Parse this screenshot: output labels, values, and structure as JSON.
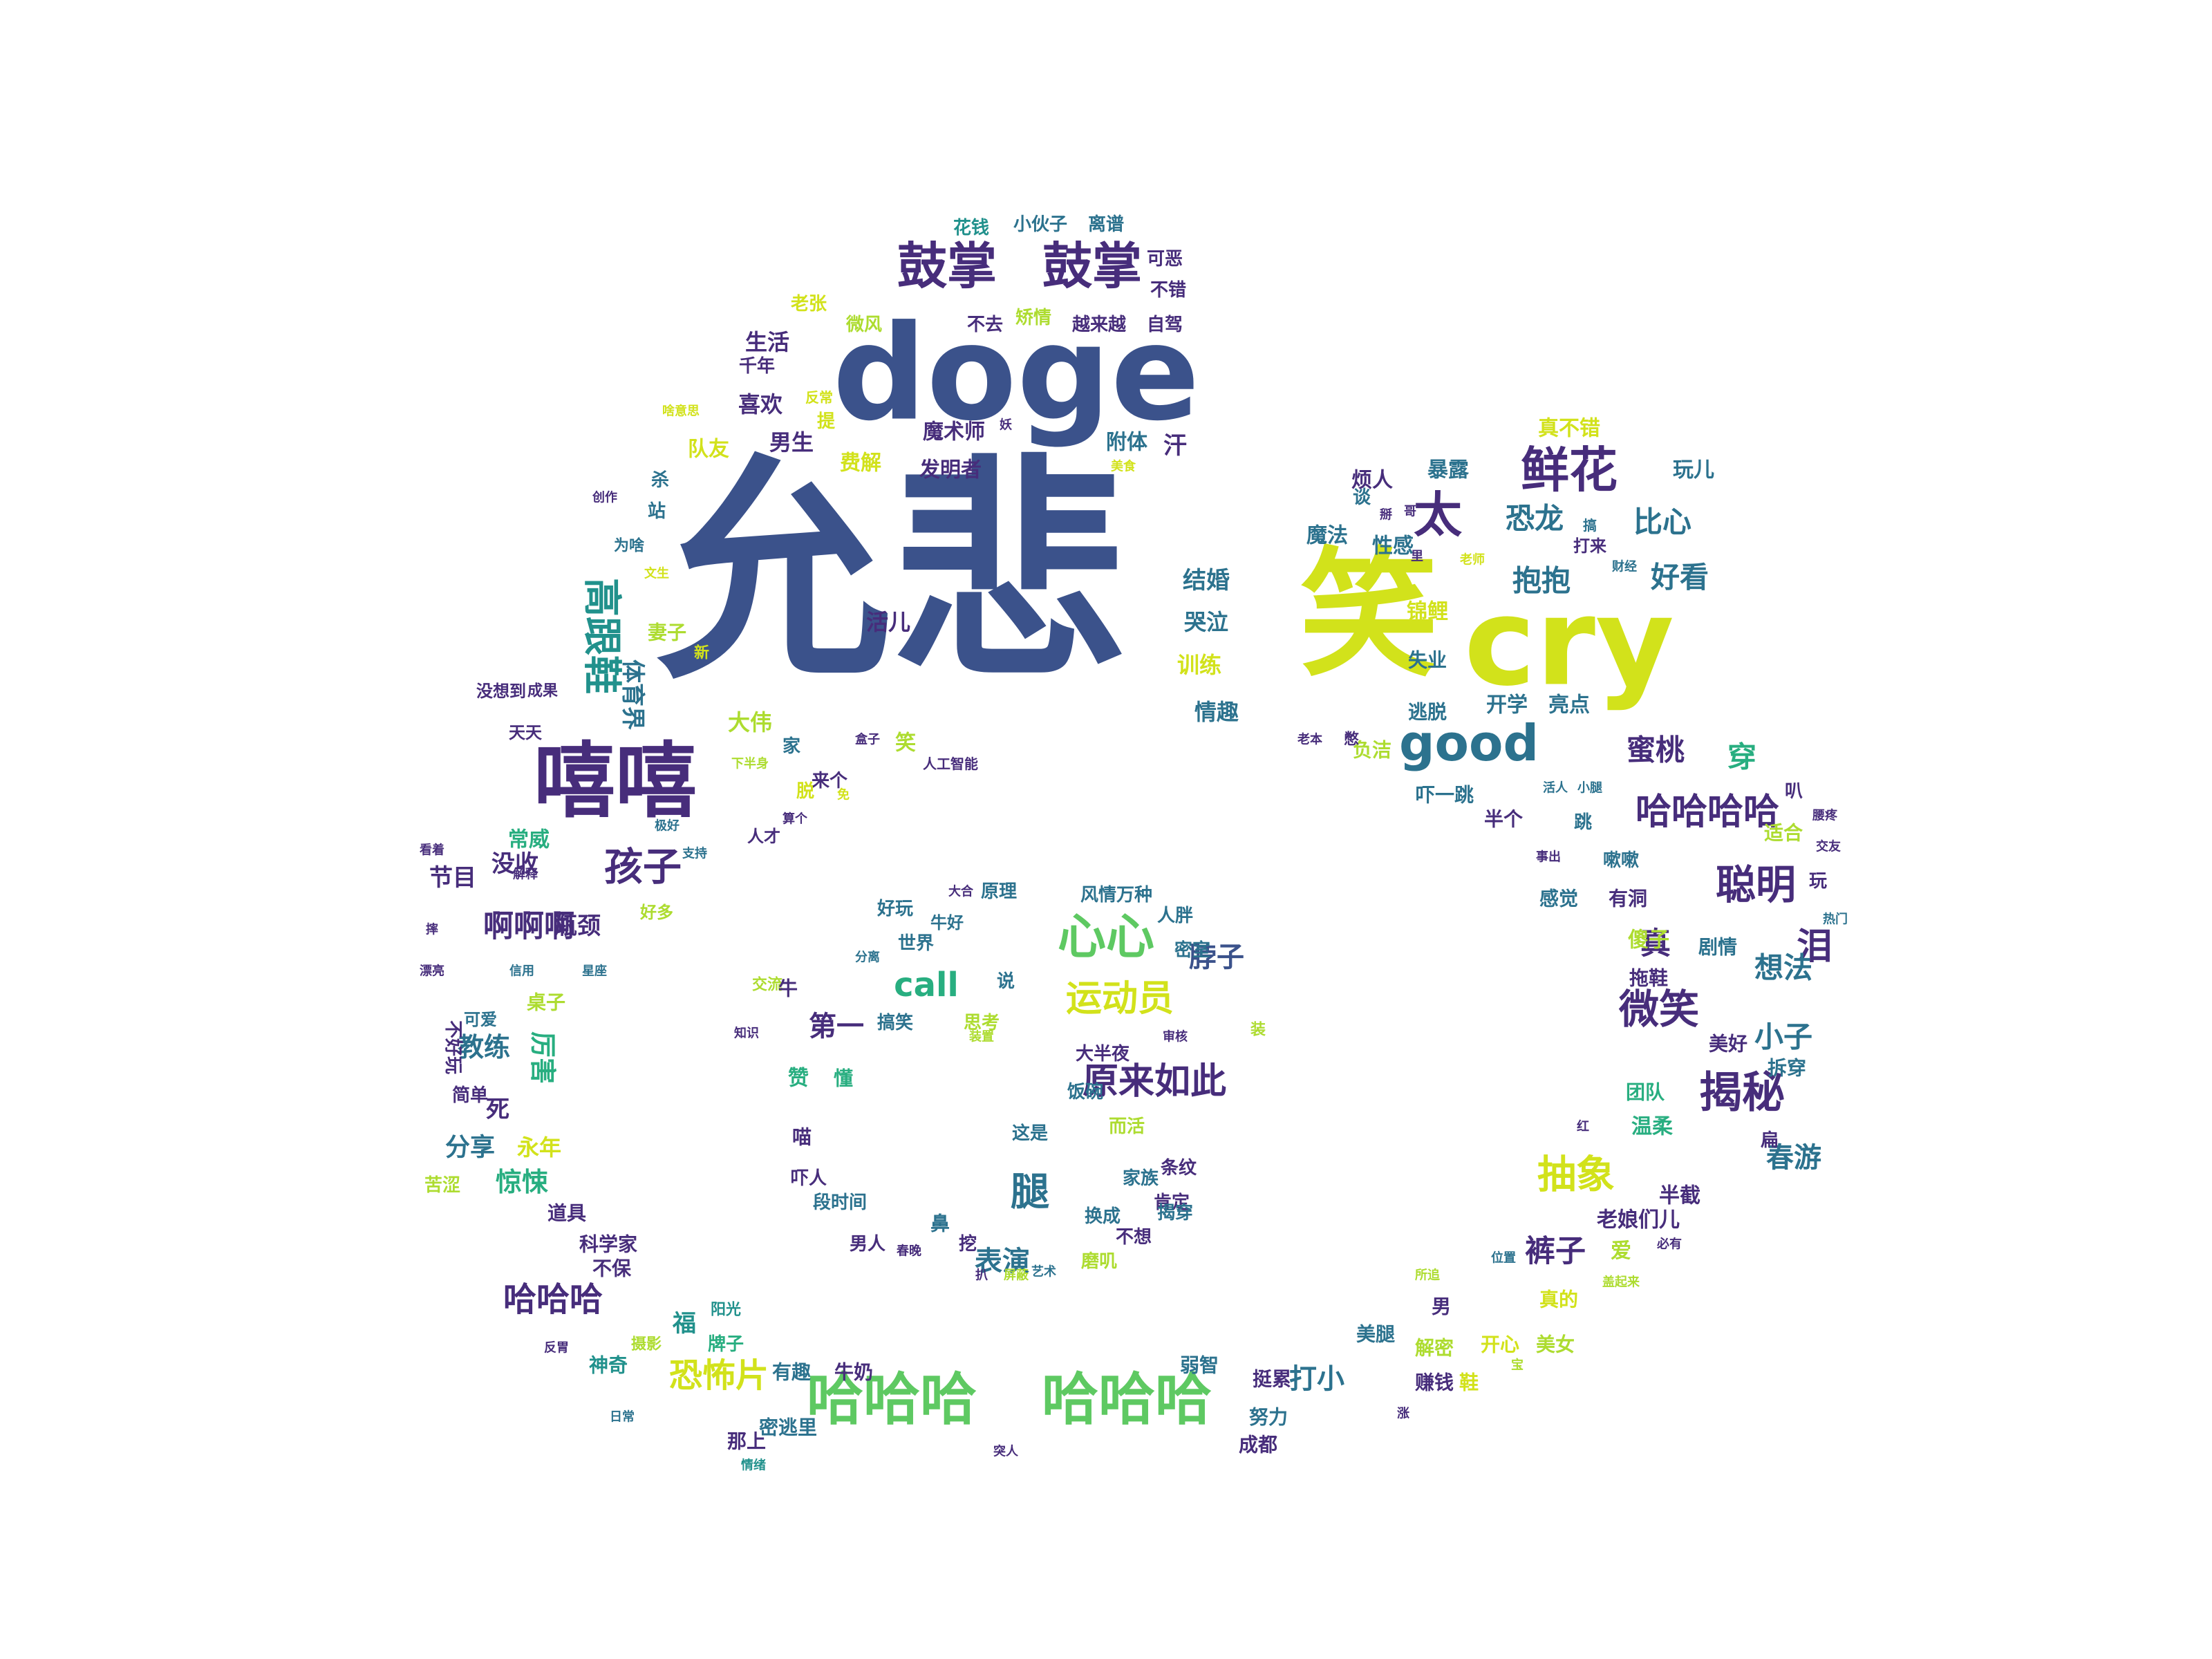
{
  "palette": {
    "p1": "#3b528b",
    "p2": "#472d7b",
    "p3": "#2c728e",
    "p4": "#21918c",
    "p5": "#28ae80",
    "p6": "#5ec962",
    "p7": "#addc30",
    "p8": "#d2e21b"
  },
  "words": [
    {
      "text": "允悲",
      "color": "p1"
    },
    {
      "text": "doge",
      "color": "p1"
    },
    {
      "text": "笑",
      "color": "p8"
    },
    {
      "text": "cry",
      "color": "p8"
    },
    {
      "text": "嘻嘻",
      "color": "p2"
    },
    {
      "text": "哈哈哈",
      "color": "p6"
    },
    {
      "text": "哈哈哈",
      "color": "p6"
    },
    {
      "text": "鼓掌",
      "color": "p2"
    },
    {
      "text": "鼓掌",
      "color": "p2"
    },
    {
      "text": "good",
      "color": "p3"
    },
    {
      "text": "心心",
      "color": "p6"
    },
    {
      "text": "鲜花",
      "color": "p2"
    },
    {
      "text": "太",
      "color": "p2"
    },
    {
      "text": "哈哈哈哈",
      "color": "p2"
    },
    {
      "text": "揭秘",
      "color": "p2"
    },
    {
      "text": "微笑",
      "color": "p2"
    },
    {
      "text": "聪明",
      "color": "p2"
    },
    {
      "text": "高跟鞋",
      "color": "p4"
    },
    {
      "text": "孩子",
      "color": "p2"
    },
    {
      "text": "抽象",
      "color": "p8"
    },
    {
      "text": "运动员",
      "color": "p8"
    },
    {
      "text": "原来如此",
      "color": "p2"
    },
    {
      "text": "call",
      "color": "p5"
    },
    {
      "text": "哈哈哈",
      "color": "p2"
    },
    {
      "text": "恐怖片",
      "color": "p8"
    },
    {
      "text": "泪",
      "color": "p2"
    },
    {
      "text": "啊啊啊",
      "color": "p2"
    },
    {
      "text": "裤子",
      "color": "p2"
    },
    {
      "text": "腿",
      "color": "p3"
    },
    {
      "text": "恐龙",
      "color": "p3"
    },
    {
      "text": "比心",
      "color": "p3"
    },
    {
      "text": "抱抱",
      "color": "p3"
    },
    {
      "text": "好看",
      "color": "p3"
    },
    {
      "text": "蜜桃",
      "color": "p2"
    },
    {
      "text": "穿",
      "color": "p5"
    },
    {
      "text": "真",
      "color": "p2"
    },
    {
      "text": "想法",
      "color": "p3"
    },
    {
      "text": "小子",
      "color": "p3"
    },
    {
      "text": "春游",
      "color": "p3"
    },
    {
      "text": "表演",
      "color": "p3"
    },
    {
      "text": "打小",
      "color": "p3"
    },
    {
      "text": "第一",
      "color": "p2"
    },
    {
      "text": "脖子",
      "color": "p1"
    },
    {
      "text": "教练",
      "color": "p3"
    },
    {
      "text": "厉害",
      "color": "p5"
    },
    {
      "text": "惊悚",
      "color": "p5"
    },
    {
      "text": "分享",
      "color": "p3"
    },
    {
      "text": "永年",
      "color": "p8"
    },
    {
      "text": "节目",
      "color": "p2"
    },
    {
      "text": "没收",
      "color": "p2"
    },
    {
      "text": "常威",
      "color": "p5"
    },
    {
      "text": "体育界",
      "color": "p3"
    },
    {
      "text": "大伟",
      "color": "p7"
    },
    {
      "text": "活儿",
      "color": "p2"
    },
    {
      "text": "结婚",
      "color": "p3"
    },
    {
      "text": "哭泣",
      "color": "p3"
    },
    {
      "text": "训练",
      "color": "p8"
    },
    {
      "text": "情趣",
      "color": "p3"
    },
    {
      "text": "魔术师",
      "color": "p2"
    },
    {
      "text": "发明者",
      "color": "p2"
    },
    {
      "text": "附体",
      "color": "p3"
    },
    {
      "text": "汗",
      "color": "p2"
    },
    {
      "text": "喜欢",
      "color": "p2"
    },
    {
      "text": "生活",
      "color": "p2"
    },
    {
      "text": "男生",
      "color": "p2"
    },
    {
      "text": "队友",
      "color": "p8"
    },
    {
      "text": "费解",
      "color": "p8"
    },
    {
      "text": "花钱",
      "color": "p4"
    },
    {
      "text": "小伙子",
      "color": "p3"
    },
    {
      "text": "离谱",
      "color": "p3"
    },
    {
      "text": "可恶",
      "color": "p2"
    },
    {
      "text": "不错",
      "color": "p2"
    },
    {
      "text": "老张",
      "color": "p8"
    },
    {
      "text": "微风",
      "color": "p7"
    },
    {
      "text": "矫情",
      "color": "p7"
    },
    {
      "text": "不去",
      "color": "p2"
    },
    {
      "text": "越来越",
      "color": "p2"
    },
    {
      "text": "自驾",
      "color": "p2"
    },
    {
      "text": "千年",
      "color": "p2"
    },
    {
      "text": "真不错",
      "color": "p8"
    },
    {
      "text": "烦人",
      "color": "p2"
    },
    {
      "text": "暴露",
      "color": "p3"
    },
    {
      "text": "玩儿",
      "color": "p3"
    },
    {
      "text": "魔法",
      "color": "p3"
    },
    {
      "text": "性感",
      "color": "p3"
    },
    {
      "text": "锦鲤",
      "color": "p8"
    },
    {
      "text": "失业",
      "color": "p3"
    },
    {
      "text": "开学",
      "color": "p3"
    },
    {
      "text": "亮点",
      "color": "p3"
    },
    {
      "text": "逃脱",
      "color": "p3"
    },
    {
      "text": "负洁",
      "color": "p7"
    },
    {
      "text": "吓一跳",
      "color": "p3"
    },
    {
      "text": "半个",
      "color": "p2"
    },
    {
      "text": "适合",
      "color": "p7"
    },
    {
      "text": "感觉",
      "color": "p3"
    },
    {
      "text": "有洞",
      "color": "p2"
    },
    {
      "text": "傻子",
      "color": "p7"
    },
    {
      "text": "剧情",
      "color": "p3"
    },
    {
      "text": "拖鞋",
      "color": "p2"
    },
    {
      "text": "美好",
      "color": "p2"
    },
    {
      "text": "拆穿",
      "color": "p3"
    },
    {
      "text": "团队",
      "color": "p5"
    },
    {
      "text": "温柔",
      "color": "p5"
    },
    {
      "text": "半截",
      "color": "p2"
    },
    {
      "text": "老娘们儿",
      "color": "p2"
    },
    {
      "text": "真的",
      "color": "p8"
    },
    {
      "text": "开心",
      "color": "p8"
    },
    {
      "text": "美女",
      "color": "p7"
    },
    {
      "text": "鞋",
      "color": "p8"
    },
    {
      "text": "解密",
      "color": "p7"
    },
    {
      "text": "赚钱",
      "color": "p2"
    },
    {
      "text": "美腿",
      "color": "p3"
    },
    {
      "text": "男",
      "color": "p2"
    },
    {
      "text": "弱智",
      "color": "p3"
    },
    {
      "text": "挺累",
      "color": "p2"
    },
    {
      "text": "努力",
      "color": "p3"
    },
    {
      "text": "成都",
      "color": "p2"
    },
    {
      "text": "牛奶",
      "color": "p2"
    },
    {
      "text": "有趣",
      "color": "p3"
    },
    {
      "text": "密逃里",
      "color": "p3"
    },
    {
      "text": "那上",
      "color": "p2"
    },
    {
      "text": "神奇",
      "color": "p4"
    },
    {
      "text": "科学家",
      "color": "p2"
    },
    {
      "text": "道具",
      "color": "p2"
    },
    {
      "text": "不保",
      "color": "p2"
    },
    {
      "text": "苦涩",
      "color": "p7"
    },
    {
      "text": "简单",
      "color": "p2"
    },
    {
      "text": "不好玩",
      "color": "p2"
    },
    {
      "text": "可爱",
      "color": "p3"
    },
    {
      "text": "桌子",
      "color": "p7"
    },
    {
      "text": "瓶颈",
      "color": "p2"
    },
    {
      "text": "好多",
      "color": "p7"
    },
    {
      "text": "风情万种",
      "color": "p3"
    },
    {
      "text": "原理",
      "color": "p3"
    },
    {
      "text": "人胖",
      "color": "p3"
    },
    {
      "text": "世界",
      "color": "p3"
    },
    {
      "text": "好玩",
      "color": "p3"
    },
    {
      "text": "密室",
      "color": "p3"
    },
    {
      "text": "搞笑",
      "color": "p3"
    },
    {
      "text": "思考",
      "color": "p7"
    },
    {
      "text": "大半夜",
      "color": "p2"
    },
    {
      "text": "饭碗",
      "color": "p3"
    },
    {
      "text": "这是",
      "color": "p3"
    },
    {
      "text": "而活",
      "color": "p7"
    },
    {
      "text": "家族",
      "color": "p3"
    },
    {
      "text": "条纹",
      "color": "p2"
    },
    {
      "text": "肯定",
      "color": "p2"
    },
    {
      "text": "揭穿",
      "color": "p3"
    },
    {
      "text": "换成",
      "color": "p3"
    },
    {
      "text": "不想",
      "color": "p2"
    },
    {
      "text": "磨叽",
      "color": "p7"
    },
    {
      "text": "男人",
      "color": "p2"
    },
    {
      "text": "吓人",
      "color": "p2"
    },
    {
      "text": "段时间",
      "color": "p3"
    },
    {
      "text": "喵",
      "color": "p2"
    },
    {
      "text": "赞",
      "color": "p5"
    },
    {
      "text": "懂",
      "color": "p5"
    },
    {
      "text": "牛好",
      "color": "p3"
    },
    {
      "text": "笑",
      "color": "p7"
    },
    {
      "text": "来个",
      "color": "p2"
    },
    {
      "text": "家",
      "color": "p3"
    },
    {
      "text": "人才",
      "color": "p2"
    },
    {
      "text": "天天",
      "color": "p2"
    },
    {
      "text": "没想到",
      "color": "p2"
    },
    {
      "text": "成果",
      "color": "p2"
    },
    {
      "text": "妻子",
      "color": "p7"
    },
    {
      "text": "新",
      "color": "p8"
    },
    {
      "text": "文生",
      "color": "p8"
    },
    {
      "text": "为啥",
      "color": "p3"
    },
    {
      "text": "站",
      "color": "p3"
    },
    {
      "text": "杀",
      "color": "p3"
    },
    {
      "text": "创作",
      "color": "p2"
    },
    {
      "text": "啥意思",
      "color": "p8"
    },
    {
      "text": "反常",
      "color": "p8"
    },
    {
      "text": "提",
      "color": "p8"
    },
    {
      "text": "妖",
      "color": "p2"
    },
    {
      "text": "美食",
      "color": "p8"
    },
    {
      "text": "谈",
      "color": "p3"
    },
    {
      "text": "掰",
      "color": "p2"
    },
    {
      "text": "哥",
      "color": "p2"
    },
    {
      "text": "里",
      "color": "p2"
    },
    {
      "text": "老师",
      "color": "p8"
    },
    {
      "text": "打来",
      "color": "p2"
    },
    {
      "text": "财经",
      "color": "p3"
    },
    {
      "text": "搞",
      "color": "p3"
    },
    {
      "text": "老本",
      "color": "p2"
    },
    {
      "text": "憋",
      "color": "p2"
    },
    {
      "text": "人工智能",
      "color": "p2"
    },
    {
      "text": "盒子",
      "color": "p2"
    },
    {
      "text": "下半身",
      "color": "p7"
    },
    {
      "text": "脱",
      "color": "p8"
    },
    {
      "text": "免",
      "color": "p8"
    },
    {
      "text": "算个",
      "color": "p2"
    },
    {
      "text": "极好",
      "color": "p3"
    },
    {
      "text": "支持",
      "color": "p3"
    },
    {
      "text": "看着",
      "color": "p2"
    },
    {
      "text": "解释",
      "color": "p2"
    },
    {
      "text": "摔",
      "color": "p2"
    },
    {
      "text": "漂亮",
      "color": "p2"
    },
    {
      "text": "信用",
      "color": "p3"
    },
    {
      "text": "星座",
      "color": "p3"
    },
    {
      "text": "死",
      "color": "p2"
    },
    {
      "text": "分离",
      "color": "p3"
    },
    {
      "text": "交流",
      "color": "p7"
    },
    {
      "text": "知识",
      "color": "p2"
    },
    {
      "text": "装置",
      "color": "p7"
    },
    {
      "text": "审核",
      "color": "p2"
    },
    {
      "text": "装",
      "color": "p7"
    },
    {
      "text": "大合",
      "color": "p2"
    },
    {
      "text": "说",
      "color": "p3"
    },
    {
      "text": "牛",
      "color": "p2"
    },
    {
      "text": "阳光",
      "color": "p4"
    },
    {
      "text": "福",
      "color": "p4"
    },
    {
      "text": "牌子",
      "color": "p5"
    },
    {
      "text": "摄影",
      "color": "p7"
    },
    {
      "text": "反胃",
      "color": "p2"
    },
    {
      "text": "日常",
      "color": "p3"
    },
    {
      "text": "情绪",
      "color": "p4"
    },
    {
      "text": "扒",
      "color": "p2"
    },
    {
      "text": "屏蔽",
      "color": "p7"
    },
    {
      "text": "艺术",
      "color": "p3"
    },
    {
      "text": "鼻",
      "color": "p3"
    },
    {
      "text": "挖",
      "color": "p2"
    },
    {
      "text": "春晚",
      "color": "p2"
    },
    {
      "text": "突人",
      "color": "p2"
    },
    {
      "text": "涨",
      "color": "p2"
    },
    {
      "text": "宝",
      "color": "p7"
    },
    {
      "text": "位置",
      "color": "p3"
    },
    {
      "text": "所追",
      "color": "p7"
    },
    {
      "text": "盖起来",
      "color": "p7"
    },
    {
      "text": "必有",
      "color": "p2"
    },
    {
      "text": "爱",
      "color": "p7"
    },
    {
      "text": "红",
      "color": "p2"
    },
    {
      "text": "扁",
      "color": "p2"
    },
    {
      "text": "热门",
      "color": "p3"
    },
    {
      "text": "交友",
      "color": "p2"
    },
    {
      "text": "玩",
      "color": "p2"
    },
    {
      "text": "事出",
      "color": "p2"
    },
    {
      "text": "跳",
      "color": "p3"
    },
    {
      "text": "嗽嗽",
      "color": "p3"
    },
    {
      "text": "小腿",
      "color": "p3"
    },
    {
      "text": "活人",
      "color": "p3"
    },
    {
      "text": "叭",
      "color": "p2"
    },
    {
      "text": "腰疼",
      "color": "p2"
    }
  ]
}
